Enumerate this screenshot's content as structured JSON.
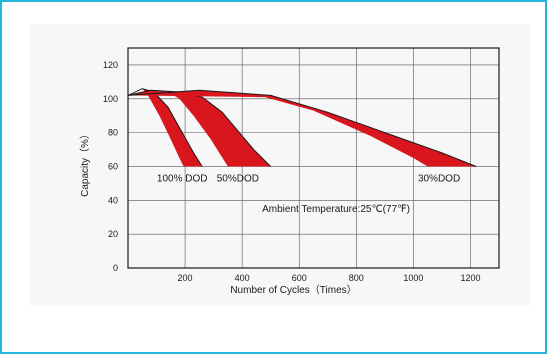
{
  "chart_data": {
    "type": "area",
    "xlabel": "Number of Cycles（Times）",
    "ylabel": "Capacity（%）",
    "xlim": [
      0,
      1300
    ],
    "ylim": [
      0,
      130
    ],
    "xticks": [
      200,
      400,
      600,
      800,
      1000,
      1200
    ],
    "yticks": [
      0,
      20,
      40,
      60,
      80,
      100,
      120
    ],
    "grid": true,
    "fill_color": "#d9161e",
    "line_color": "#1a1a1a",
    "annotation": "Ambient Temperature:25℃(77℉)",
    "series": [
      {
        "name": "100% DOD",
        "upper": [
          [
            0,
            102
          ],
          [
            50,
            106
          ],
          [
            90,
            104
          ],
          [
            140,
            95
          ],
          [
            190,
            80
          ],
          [
            230,
            68
          ],
          [
            260,
            60
          ]
        ],
        "lower": [
          [
            50,
            106
          ],
          [
            70,
            102
          ],
          [
            110,
            90
          ],
          [
            150,
            76
          ],
          [
            180,
            65
          ],
          [
            195,
            60
          ]
        ]
      },
      {
        "name": "50%DOD",
        "upper": [
          [
            0,
            102
          ],
          [
            80,
            105
          ],
          [
            180,
            104
          ],
          [
            260,
            101
          ],
          [
            330,
            92
          ],
          [
            390,
            80
          ],
          [
            440,
            70
          ],
          [
            500,
            60
          ]
        ],
        "lower": [
          [
            140,
            104
          ],
          [
            180,
            100
          ],
          [
            230,
            90
          ],
          [
            290,
            76
          ],
          [
            350,
            60
          ]
        ]
      },
      {
        "name": "30%DOD",
        "upper": [
          [
            0,
            102
          ],
          [
            250,
            105
          ],
          [
            500,
            102
          ],
          [
            700,
            92
          ],
          [
            900,
            80
          ],
          [
            1100,
            68
          ],
          [
            1220,
            60
          ]
        ],
        "lower": [
          [
            480,
            101
          ],
          [
            650,
            93
          ],
          [
            850,
            78
          ],
          [
            1000,
            65
          ],
          [
            1050,
            60
          ]
        ]
      }
    ]
  }
}
